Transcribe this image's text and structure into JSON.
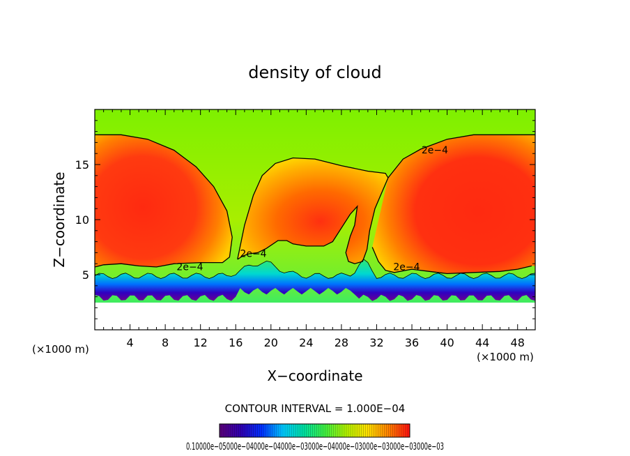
{
  "chart_data": {
    "type": "heatmap",
    "title": "density of cloud",
    "xlabel": "X−coordinate",
    "ylabel": "Z−coordinate",
    "x_unit_left": "(×1000 m)",
    "x_unit_right": "(×1000 m)",
    "xlim": [
      0,
      50
    ],
    "ylim": [
      0,
      20
    ],
    "x_ticks": [
      4,
      8,
      12,
      16,
      20,
      24,
      28,
      32,
      36,
      40,
      44,
      48
    ],
    "x_tick_labels": [
      "4",
      "8",
      "12",
      "16",
      "20",
      "24",
      "28",
      "32",
      "36",
      "40",
      "44",
      "48"
    ],
    "x_minor_step": 1,
    "y_ticks": [
      5,
      10,
      15
    ],
    "y_tick_labels": [
      "5",
      "10",
      "15"
    ],
    "y_minor_step": 1,
    "contour_interval_text": "CONTOUR INTERVAL = 1.000E−04",
    "contour_labels": [
      {
        "text": "2e−4",
        "x": 38.6,
        "z": 16.0
      },
      {
        "text": "2e−4",
        "x": 18.0,
        "z": 6.6
      },
      {
        "text": "2e−4",
        "x": 10.8,
        "z": 5.4
      },
      {
        "text": "2e−4",
        "x": 35.4,
        "z": 5.4
      }
    ],
    "contour_2e4": [
      {
        "name": "left-dome",
        "points": [
          [
            0,
            17.7
          ],
          [
            3,
            17.7
          ],
          [
            6,
            17.3
          ],
          [
            9,
            16.3
          ],
          [
            11.5,
            14.8
          ],
          [
            13.5,
            13
          ],
          [
            15,
            10.8
          ],
          [
            15.6,
            8.4
          ],
          [
            15.3,
            6.6
          ],
          [
            14.5,
            6.1
          ],
          [
            12,
            6.1
          ],
          [
            9,
            6.0
          ],
          [
            7,
            5.7
          ],
          [
            5,
            5.8
          ],
          [
            3,
            6.0
          ],
          [
            1,
            5.9
          ],
          [
            0,
            5.7
          ]
        ]
      },
      {
        "name": "central-dome",
        "points": [
          [
            16.2,
            6.4
          ],
          [
            17.0,
            9.5
          ],
          [
            18.0,
            12.2
          ],
          [
            19.0,
            14.0
          ],
          [
            20.5,
            15.1
          ],
          [
            22.5,
            15.6
          ],
          [
            25,
            15.5
          ],
          [
            28,
            14.9
          ],
          [
            31,
            14.4
          ],
          [
            33,
            14.2
          ],
          [
            33.3,
            13.8
          ],
          [
            32.6,
            12.5
          ],
          [
            31.8,
            11.0
          ],
          [
            31.2,
            9.0
          ],
          [
            30.9,
            7.3
          ],
          [
            30.4,
            6.2
          ],
          [
            29.5,
            6.0
          ],
          [
            28.8,
            6.2
          ],
          [
            28.5,
            7.0
          ],
          [
            29.0,
            8.5
          ],
          [
            29.5,
            9.5
          ],
          [
            29.8,
            11.2
          ],
          [
            29.0,
            10.5
          ],
          [
            27,
            8.0
          ],
          [
            26,
            7.6
          ],
          [
            24,
            7.6
          ],
          [
            22.5,
            7.8
          ],
          [
            21.8,
            8.1
          ],
          [
            20.8,
            8.1
          ],
          [
            19.5,
            7.4
          ],
          [
            18.5,
            7.0
          ],
          [
            17.5,
            6.9
          ],
          [
            16.8,
            6.7
          ],
          [
            16.2,
            6.4
          ]
        ]
      },
      {
        "name": "right-dome",
        "points": [
          [
            33.3,
            13.8
          ],
          [
            35,
            15.5
          ],
          [
            37,
            16.4
          ],
          [
            40,
            17.3
          ],
          [
            43,
            17.7
          ],
          [
            46,
            17.7
          ],
          [
            50,
            17.7
          ]
        ]
      },
      {
        "name": "right-base",
        "points": [
          [
            31.5,
            7.5
          ],
          [
            32.2,
            6.2
          ],
          [
            33.0,
            5.4
          ],
          [
            34,
            5.2
          ],
          [
            36,
            5.5
          ],
          [
            38,
            5.3
          ],
          [
            40,
            5.1
          ],
          [
            43,
            5.2
          ],
          [
            46,
            5.3
          ],
          [
            48,
            5.5
          ],
          [
            49.6,
            5.8
          ]
        ]
      }
    ],
    "colorbar": {
      "ticks": [
        0.0001,
        0.0002,
        0.0003,
        0.0004,
        0.0005,
        0.0006,
        0.0007,
        0.0008,
        0.0009,
        0.001
      ],
      "tick_labels_text": "0.10000e−05000e−04000e−04000e−03000e−04000e−03000e−03000e−03000e−03",
      "colors": [
        "#5a007a",
        "#3000b0",
        "#0030ff",
        "#00c8ff",
        "#00e0a0",
        "#40f040",
        "#b0f000",
        "#ffe000",
        "#ff8000",
        "#ff1010"
      ]
    }
  }
}
